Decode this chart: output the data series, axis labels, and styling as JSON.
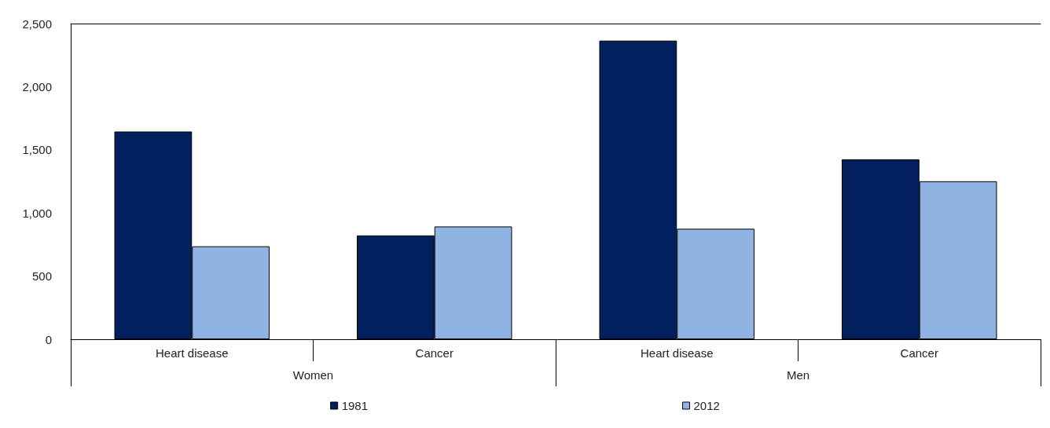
{
  "chart_data": {
    "type": "bar",
    "categories": [
      "Heart disease",
      "Cancer",
      "Heart disease",
      "Cancer"
    ],
    "series": [
      {
        "name": "1981",
        "color": "#02205e",
        "values": [
          1645,
          822,
          2365,
          1425
        ]
      },
      {
        "name": "2012",
        "color": "#8fb4e3",
        "values": [
          736,
          893,
          875,
          1251
        ]
      }
    ],
    "annotations": [
      "Women",
      "Men"
    ],
    "ylim": [
      0,
      2500
    ],
    "yticks": [
      0,
      500,
      {
        "value": 1000,
        "label": "1,000"
      },
      {
        "value": 1500,
        "label": "1,500"
      },
      {
        "value": 2000,
        "label": "2,000"
      },
      {
        "value": 2500,
        "label": "2,500"
      }
    ],
    "grid": false,
    "legend": "bottom"
  }
}
